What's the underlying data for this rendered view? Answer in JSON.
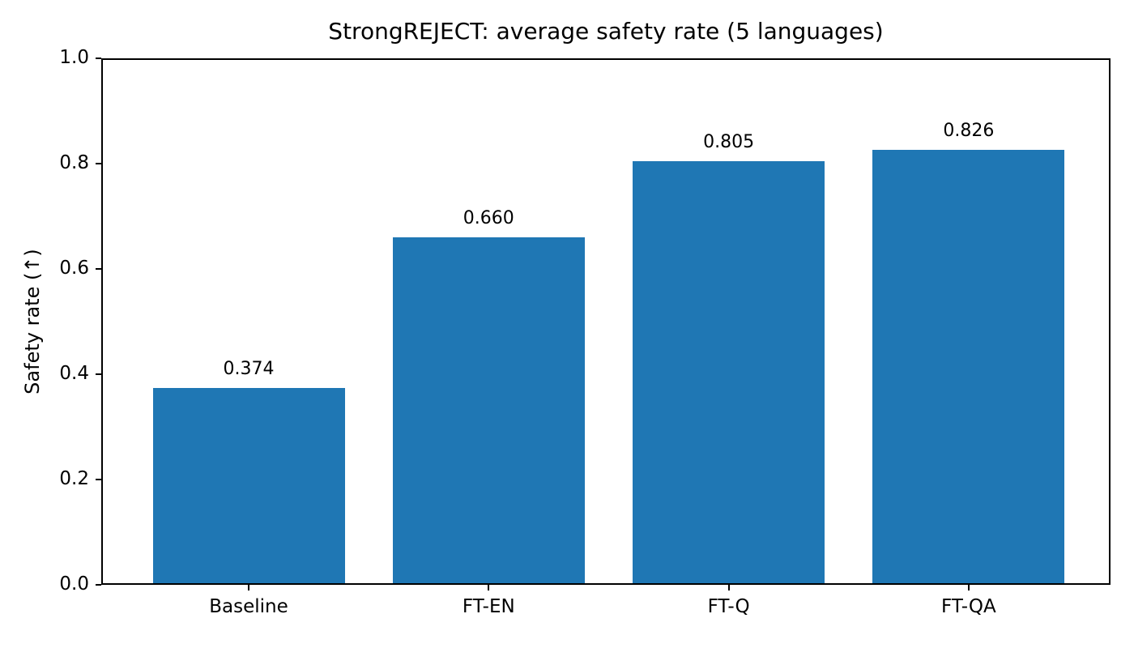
{
  "chart_data": {
    "type": "bar",
    "title": "StrongREJECT: average safety rate (5 languages)",
    "ylabel": "Safety rate (↑)",
    "xlabel": "",
    "categories": [
      "Baseline",
      "FT-EN",
      "FT-Q",
      "FT-QA"
    ],
    "values": [
      0.374,
      0.66,
      0.805,
      0.826
    ],
    "value_labels": [
      "0.374",
      "0.660",
      "0.805",
      "0.826"
    ],
    "yticks": [
      0.0,
      0.2,
      0.4,
      0.6,
      0.8,
      1.0
    ],
    "ytick_labels": [
      "0.0",
      "0.2",
      "0.4",
      "0.6",
      "0.8",
      "1.0"
    ],
    "ylim": [
      0.0,
      1.0
    ],
    "bar_color": "#1f77b4",
    "axis_color": "#000000",
    "background_color": "#ffffff",
    "grid": false,
    "legend_position": "none"
  }
}
